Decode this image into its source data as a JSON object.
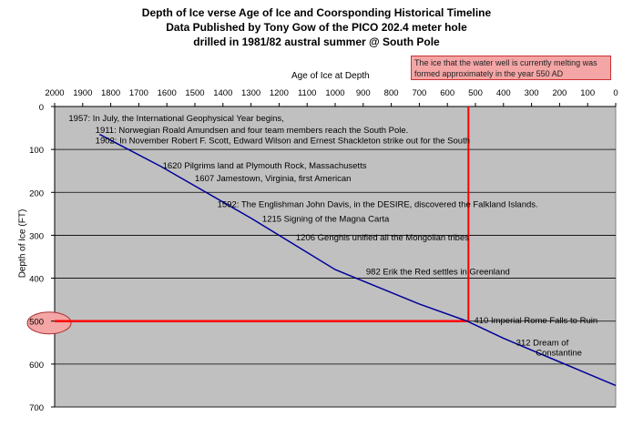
{
  "title_lines": [
    "Depth of Ice verse Age of Ice and Coorsponding Historical Timeline",
    "Data Published by Tony Gow of the PICO 202.4 meter hole",
    "drilled in 1981/82 austral summer @ South Pole"
  ],
  "callout": "The ice that the water well is currently melting was formed approximately in the year 550 AD",
  "colors": {
    "plot_background": "#c0c0c0",
    "gridline": "#000000",
    "series_line": "#000099",
    "marker_line": "#ff0000",
    "callout_fill": "#f4a5a5",
    "ellipse_fill": "#f4a5a5"
  },
  "chart_data": {
    "type": "line",
    "xlabel": "Age of Ice at Depth",
    "ylabel": "Depth of Ice (FT)",
    "xlim": [
      2000,
      0
    ],
    "ylim": [
      0,
      700
    ],
    "x_ticks": [
      2000,
      1900,
      1800,
      1700,
      1600,
      1500,
      1400,
      1300,
      1200,
      1100,
      1000,
      900,
      800,
      700,
      600,
      500,
      400,
      300,
      200,
      100,
      0
    ],
    "y_ticks": [
      0,
      100,
      200,
      300,
      400,
      500,
      600,
      700
    ],
    "x_axis_position": "top",
    "grid": "horizontal",
    "series": [
      {
        "x": [
          1840,
          1620,
          1300,
          1000,
          700,
          530,
          400,
          200,
          0
        ],
        "y": [
          65,
          140,
          260,
          380,
          460,
          500,
          540,
          595,
          650
        ]
      }
    ],
    "marker_lines": [
      {
        "type": "vertical",
        "x": 525,
        "y_from": 0,
        "y_to": 500
      },
      {
        "type": "horizontal",
        "y": 500,
        "x_from": 2000,
        "x_to": 525
      }
    ],
    "highlight_tick": 500,
    "annotations": [
      {
        "text": "1957: In July, the International Geophysical Year begins,",
        "x": 1950,
        "y": 28
      },
      {
        "text": "1911: Norwegian Roald Amundsen and four team members reach the South Pole.",
        "x": 1855,
        "y": 55
      },
      {
        "text": "1902: In November Robert F. Scott, Edward Wilson and Ernest Shackleton strike out for the South",
        "x": 1855,
        "y": 80
      },
      {
        "text": "1620 Pilgrims land at Plymouth Rock,  Massachusetts",
        "x": 1615,
        "y": 138
      },
      {
        "text": "1607 Jamestown, Virginia, first American",
        "x": 1500,
        "y": 168
      },
      {
        "text": "1592: The Englishman John Davis, in the DESIRE, discovered the Falkland Islands.",
        "x": 1420,
        "y": 228
      },
      {
        "text": "1215 Signing of the Magna Carta",
        "x": 1260,
        "y": 262
      },
      {
        "text": "1206 Genghis unified all the Mongolian tribes",
        "x": 1140,
        "y": 305
      },
      {
        "text": "982 Erik the Red settles in Greenland",
        "x": 890,
        "y": 385
      },
      {
        "text": "410 Imperial Rome Falls to Ruin",
        "x": 505,
        "y": 498
      },
      {
        "text": "312 Dream of",
        "x": 355,
        "y": 550
      },
      {
        "text": "Constantine",
        "x": 285,
        "y": 574
      }
    ]
  }
}
